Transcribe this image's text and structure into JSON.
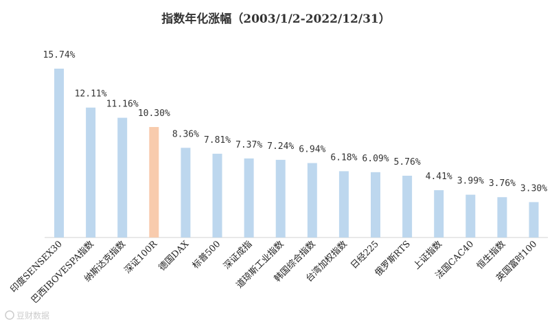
{
  "chart_data": {
    "type": "bar",
    "title": "指数年化涨幅（2003/1/2-2022/12/31）",
    "categories": [
      "印度SENSEX30",
      "巴西IBOVESPA指数",
      "纳斯达克指数",
      "深证100R",
      "德国DAX",
      "标普500",
      "深证成指",
      "道琼斯工业指数",
      "韩国综合指数",
      "台湾加权指数",
      "日经225",
      "俄罗斯RTS",
      "上证指数",
      "法国CAC40",
      "恒生指数",
      "英国富时100"
    ],
    "values": [
      15.74,
      12.11,
      11.16,
      10.3,
      8.36,
      7.81,
      7.37,
      7.24,
      6.94,
      6.18,
      6.09,
      5.76,
      4.41,
      3.99,
      3.76,
      3.3
    ],
    "value_labels": [
      "15.74%",
      "12.11%",
      "11.16%",
      "10.30%",
      "8.36%",
      "7.81%",
      "7.37%",
      "7.24%",
      "6.94%",
      "6.18%",
      "6.09%",
      "5.76%",
      "4.41%",
      "3.99%",
      "3.76%",
      "3.30%"
    ],
    "highlight": "深证100R",
    "colors": {
      "default": "#bdd7ee",
      "highlight": "#f8cbad"
    },
    "ylim": [
      0,
      16
    ],
    "grid": false,
    "legend": "none"
  },
  "watermark": "豆财数据"
}
